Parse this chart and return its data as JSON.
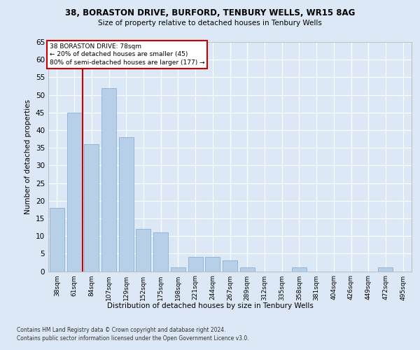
{
  "title1": "38, BORASTON DRIVE, BURFORD, TENBURY WELLS, WR15 8AG",
  "title2": "Size of property relative to detached houses in Tenbury Wells",
  "xlabel": "Distribution of detached houses by size in Tenbury Wells",
  "ylabel": "Number of detached properties",
  "categories": [
    "38sqm",
    "61sqm",
    "84sqm",
    "107sqm",
    "129sqm",
    "152sqm",
    "175sqm",
    "198sqm",
    "221sqm",
    "244sqm",
    "267sqm",
    "289sqm",
    "312sqm",
    "335sqm",
    "358sqm",
    "381sqm",
    "404sqm",
    "426sqm",
    "449sqm",
    "472sqm",
    "495sqm"
  ],
  "values": [
    18,
    45,
    36,
    52,
    38,
    12,
    11,
    1,
    4,
    4,
    3,
    1,
    0,
    0,
    1,
    0,
    0,
    0,
    0,
    1,
    0
  ],
  "bar_color": "#b8cfe8",
  "bar_edge_color": "#7aaad0",
  "annotation_line1": "38 BORASTON DRIVE: 78sqm",
  "annotation_line2": "← 20% of detached houses are smaller (45)",
  "annotation_line3": "80% of semi-detached houses are larger (177) →",
  "annotation_box_facecolor": "#ffffff",
  "annotation_box_edgecolor": "#cc0000",
  "vline_color": "#cc0000",
  "vline_x": 1.5,
  "ylim": [
    0,
    65
  ],
  "yticks": [
    0,
    5,
    10,
    15,
    20,
    25,
    30,
    35,
    40,
    45,
    50,
    55,
    60,
    65
  ],
  "grid_color": "#ffffff",
  "bg_color": "#dce8f5",
  "footer1": "Contains HM Land Registry data © Crown copyright and database right 2024.",
  "footer2": "Contains public sector information licensed under the Open Government Licence v3.0."
}
